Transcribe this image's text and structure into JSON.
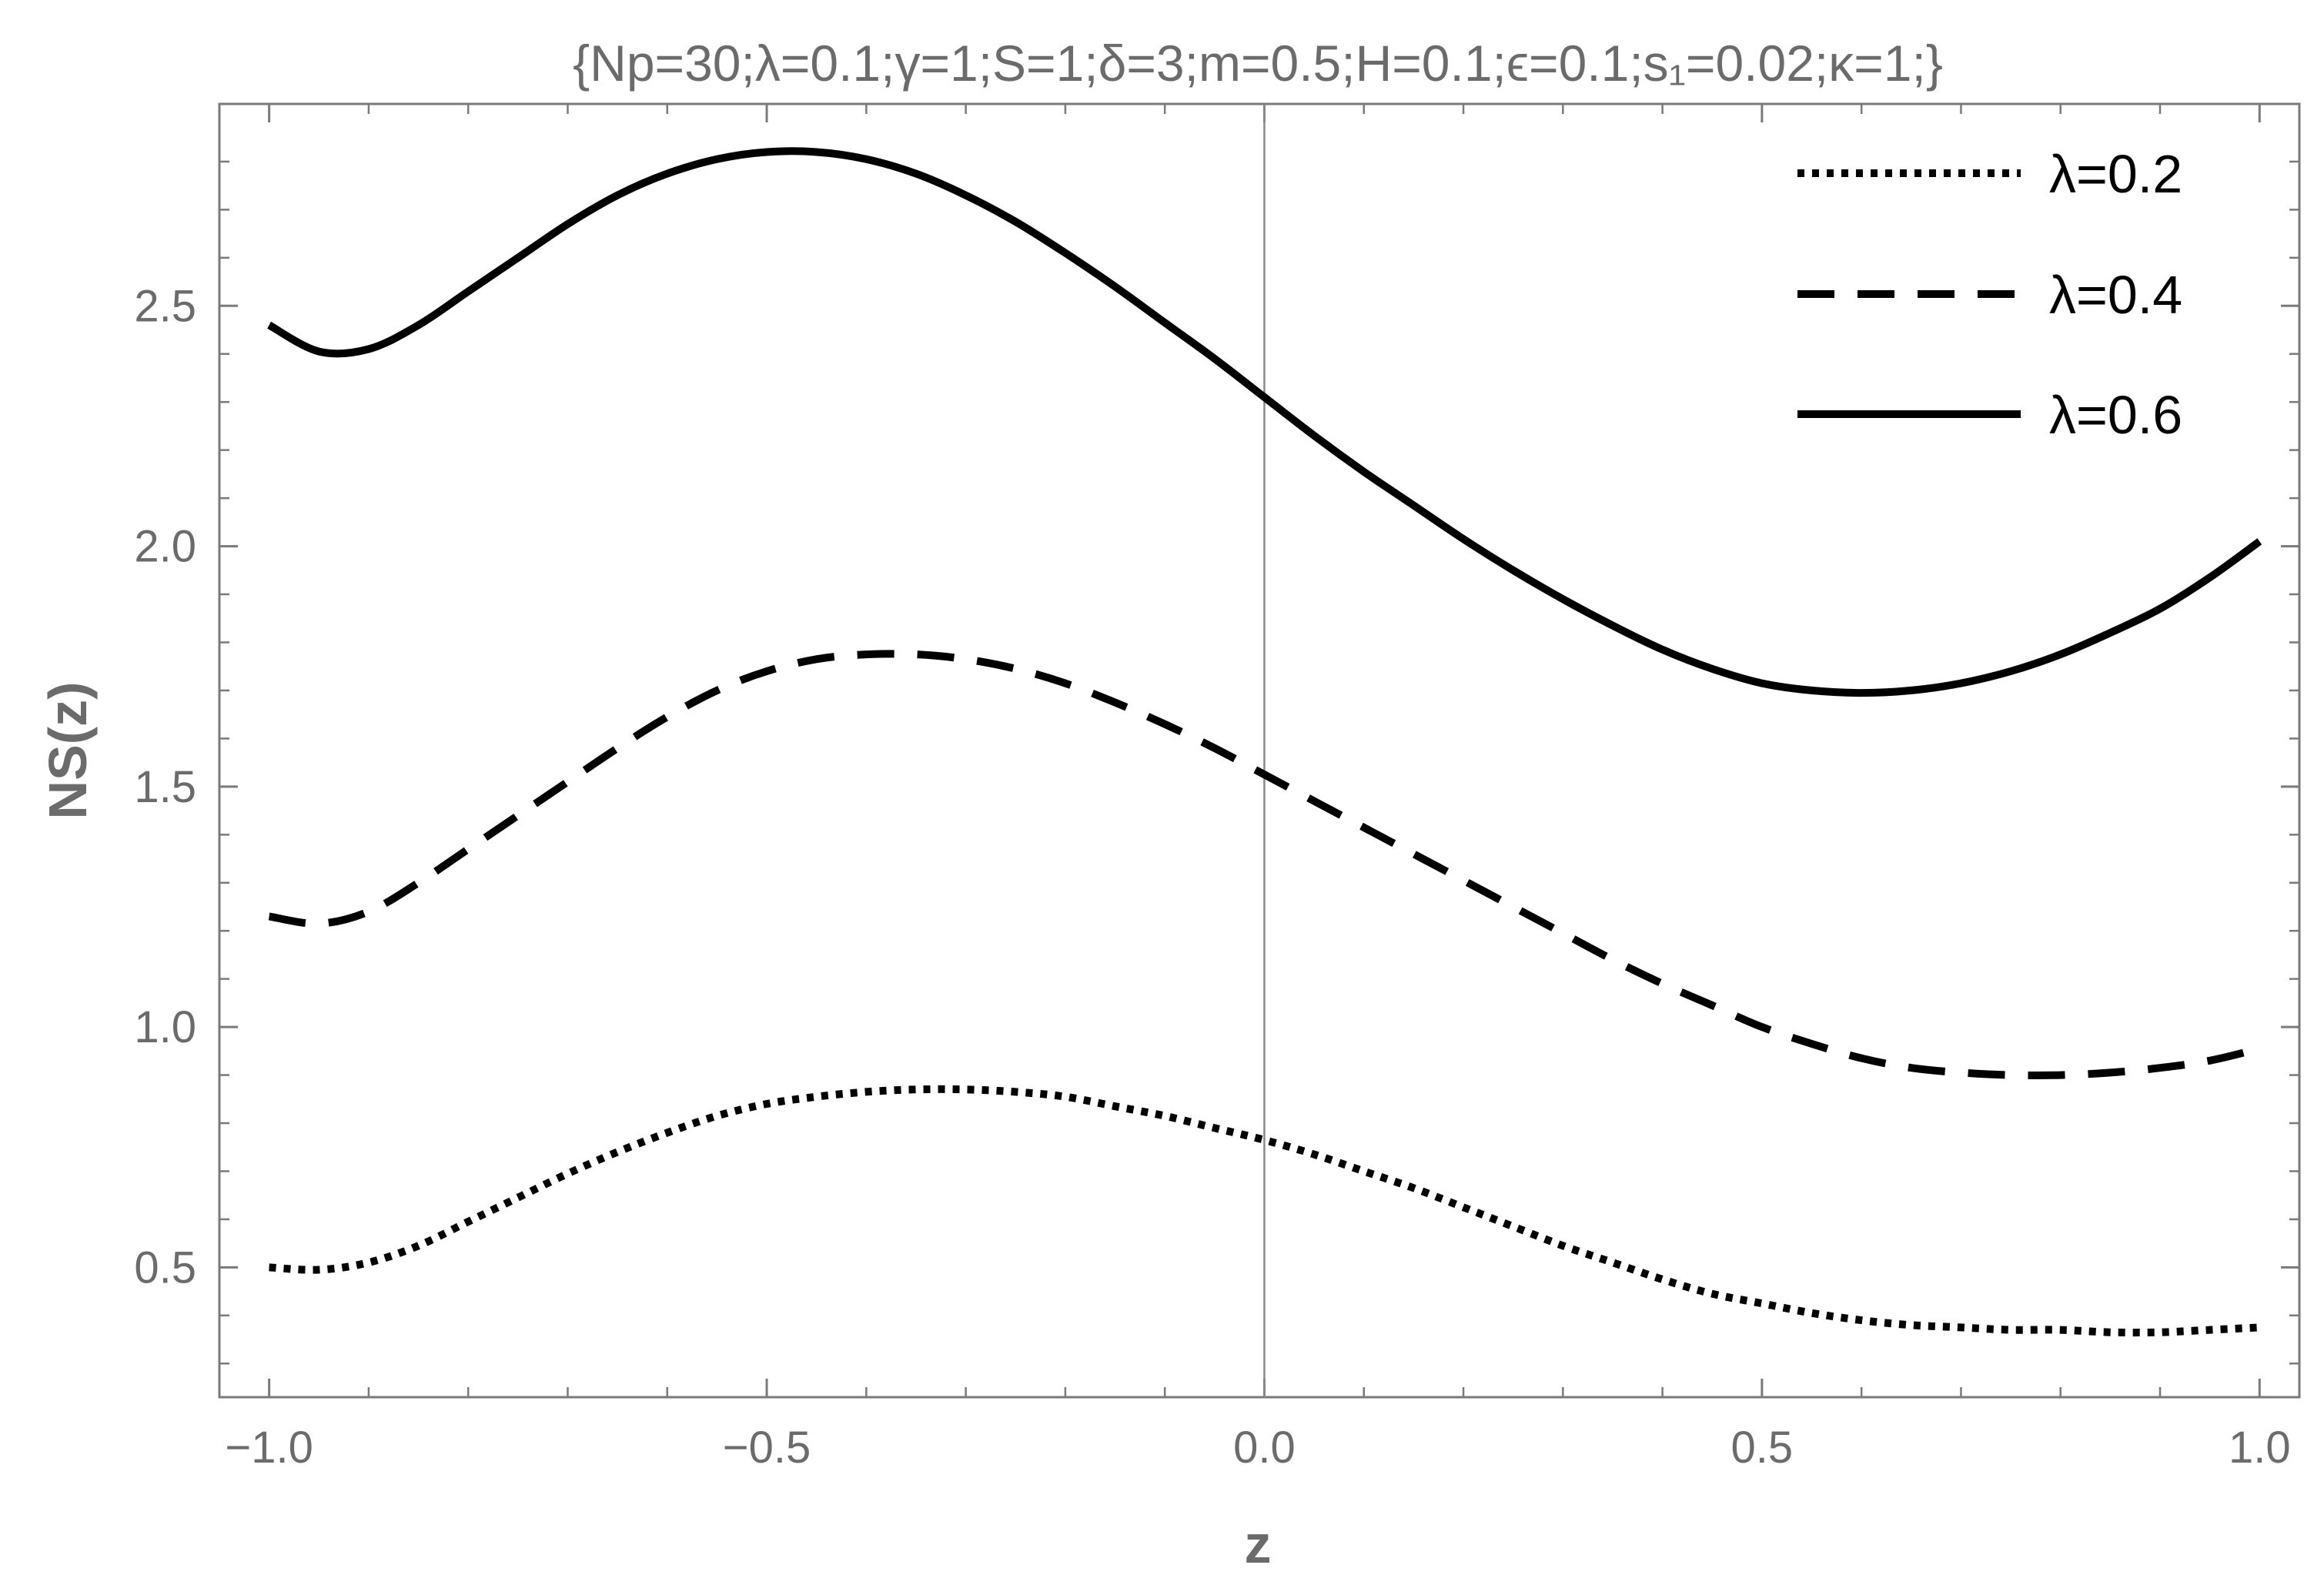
{
  "chart_data": {
    "type": "line",
    "title": "{Np=30;λ=0.1;γ=1;S=1;δ=3;m=0.5;H=0.1;ϵ=0.1;s₁=0.02;κ=1;}",
    "xlabel": "z",
    "ylabel": "NS(z)",
    "xlim": [
      -1.05,
      1.04
    ],
    "ylim": [
      0.23,
      2.92
    ],
    "xticks": [
      -1.0,
      -0.5,
      0.0,
      0.5,
      1.0
    ],
    "xtick_labels": [
      "−1.0",
      "−0.5",
      "0.0",
      "0.5",
      "1.0"
    ],
    "yticks": [
      0.5,
      1.0,
      1.5,
      2.0,
      2.5
    ],
    "ytick_labels": [
      "0.5",
      "1.0",
      "1.5",
      "2.0",
      "2.5"
    ],
    "grid": false,
    "legend_position": "top-right",
    "series": [
      {
        "name": "λ=0.2",
        "style": "dotted",
        "color": "#000000",
        "x": [
          -1.0,
          -0.95,
          -0.9,
          -0.85,
          -0.8,
          -0.75,
          -0.7,
          -0.65,
          -0.6,
          -0.55,
          -0.5,
          -0.45,
          -0.4,
          -0.35,
          -0.3,
          -0.25,
          -0.2,
          -0.15,
          -0.1,
          -0.05,
          0.0,
          0.05,
          0.1,
          0.15,
          0.2,
          0.25,
          0.3,
          0.35,
          0.4,
          0.45,
          0.5,
          0.55,
          0.6,
          0.65,
          0.7,
          0.75,
          0.8,
          0.85,
          0.9,
          0.95,
          1.0
        ],
        "y": [
          0.5,
          0.495,
          0.51,
          0.545,
          0.595,
          0.645,
          0.695,
          0.74,
          0.78,
          0.815,
          0.84,
          0.855,
          0.865,
          0.87,
          0.87,
          0.865,
          0.855,
          0.835,
          0.815,
          0.79,
          0.765,
          0.735,
          0.7,
          0.665,
          0.625,
          0.585,
          0.545,
          0.51,
          0.475,
          0.445,
          0.425,
          0.405,
          0.39,
          0.38,
          0.375,
          0.37,
          0.37,
          0.365,
          0.365,
          0.37,
          0.375
        ]
      },
      {
        "name": "λ=0.4",
        "style": "dashed",
        "color": "#000000",
        "x": [
          -1.0,
          -0.95,
          -0.9,
          -0.85,
          -0.8,
          -0.75,
          -0.7,
          -0.65,
          -0.6,
          -0.55,
          -0.5,
          -0.45,
          -0.4,
          -0.35,
          -0.3,
          -0.25,
          -0.2,
          -0.15,
          -0.1,
          -0.05,
          0.0,
          0.05,
          0.1,
          0.15,
          0.2,
          0.25,
          0.3,
          0.35,
          0.4,
          0.45,
          0.5,
          0.55,
          0.6,
          0.65,
          0.7,
          0.75,
          0.8,
          0.85,
          0.9,
          0.95,
          1.0
        ],
        "y": [
          1.23,
          1.215,
          1.24,
          1.3,
          1.37,
          1.44,
          1.51,
          1.58,
          1.645,
          1.7,
          1.74,
          1.765,
          1.775,
          1.775,
          1.765,
          1.745,
          1.715,
          1.675,
          1.63,
          1.58,
          1.525,
          1.47,
          1.415,
          1.36,
          1.305,
          1.25,
          1.195,
          1.14,
          1.09,
          1.045,
          1.0,
          0.965,
          0.935,
          0.915,
          0.905,
          0.9,
          0.9,
          0.905,
          0.915,
          0.93,
          0.955
        ]
      },
      {
        "name": "λ=0.6",
        "style": "solid",
        "color": "#000000",
        "x": [
          -1.0,
          -0.95,
          -0.9,
          -0.85,
          -0.8,
          -0.75,
          -0.7,
          -0.65,
          -0.6,
          -0.55,
          -0.5,
          -0.45,
          -0.4,
          -0.35,
          -0.3,
          -0.25,
          -0.2,
          -0.15,
          -0.1,
          -0.05,
          0.0,
          0.05,
          0.1,
          0.15,
          0.2,
          0.25,
          0.3,
          0.35,
          0.4,
          0.45,
          0.5,
          0.55,
          0.6,
          0.65,
          0.7,
          0.75,
          0.8,
          0.85,
          0.9,
          0.95,
          1.0
        ],
        "y": [
          2.46,
          2.405,
          2.41,
          2.46,
          2.53,
          2.6,
          2.67,
          2.73,
          2.775,
          2.805,
          2.82,
          2.82,
          2.805,
          2.775,
          2.73,
          2.675,
          2.61,
          2.54,
          2.465,
          2.39,
          2.31,
          2.23,
          2.155,
          2.085,
          2.015,
          1.95,
          1.89,
          1.835,
          1.785,
          1.745,
          1.715,
          1.7,
          1.695,
          1.7,
          1.715,
          1.74,
          1.775,
          1.82,
          1.87,
          1.935,
          2.01
        ]
      }
    ]
  }
}
